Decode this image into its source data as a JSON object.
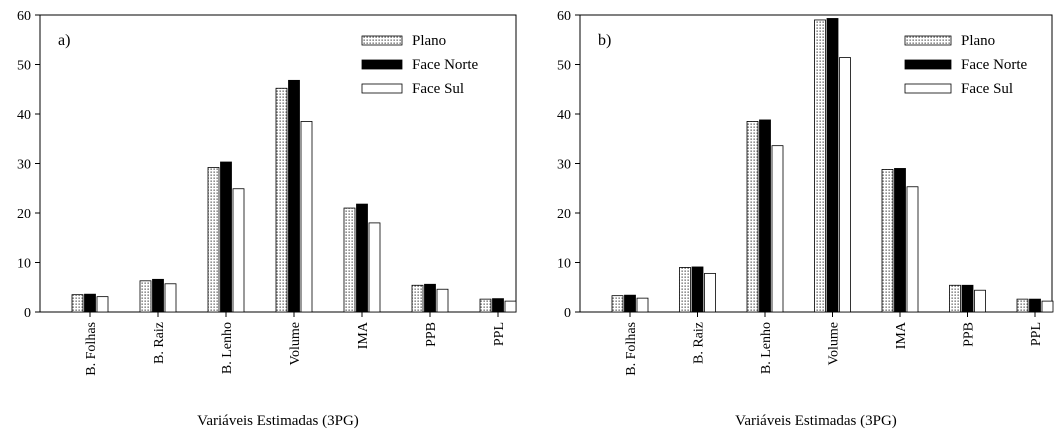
{
  "colors": {
    "plano": "dotted",
    "face_norte": "#000000",
    "face_sul": "#ffffff",
    "axis": "#000000"
  },
  "chart_data": [
    {
      "type": "bar",
      "panel_label": "a)",
      "xlabel": "Variáveis Estimadas (3PG)",
      "ylabel": "",
      "ylim": [
        0,
        60
      ],
      "yticks": [
        "0",
        "10",
        "20",
        "30",
        "40",
        "50",
        "60"
      ],
      "legend_position": "top-right",
      "categories": [
        "B. Folhas",
        "B. Raiz",
        "B. Lenho",
        "Volume",
        "IMA",
        "PPB",
        "PPL"
      ],
      "series": [
        {
          "name": "Plano",
          "values": [
            3.5,
            6.3,
            29.2,
            45.2,
            21.0,
            5.4,
            2.6
          ]
        },
        {
          "name": "Face Norte",
          "values": [
            3.6,
            6.6,
            30.3,
            46.8,
            21.8,
            5.6,
            2.7
          ]
        },
        {
          "name": "Face Sul",
          "values": [
            3.1,
            5.7,
            24.9,
            38.5,
            18.0,
            4.6,
            2.2
          ]
        }
      ]
    },
    {
      "type": "bar",
      "panel_label": "b)",
      "xlabel": "Variáveis Estimadas (3PG)",
      "ylabel": "",
      "ylim": [
        0,
        60
      ],
      "yticks": [
        "0",
        "10",
        "20",
        "30",
        "40",
        "50",
        "60"
      ],
      "legend_position": "top-right",
      "categories": [
        "B. Folhas",
        "B. Raiz",
        "B. Lenho",
        "Volume",
        "IMA",
        "PPB",
        "PPL"
      ],
      "series": [
        {
          "name": "Plano",
          "values": [
            3.3,
            9.0,
            38.5,
            59.0,
            28.8,
            5.4,
            2.6
          ]
        },
        {
          "name": "Face Norte",
          "values": [
            3.4,
            9.1,
            38.8,
            59.3,
            29.0,
            5.4,
            2.6
          ]
        },
        {
          "name": "Face Sul",
          "values": [
            2.8,
            7.8,
            33.6,
            51.4,
            25.3,
            4.4,
            2.2
          ]
        }
      ]
    }
  ]
}
